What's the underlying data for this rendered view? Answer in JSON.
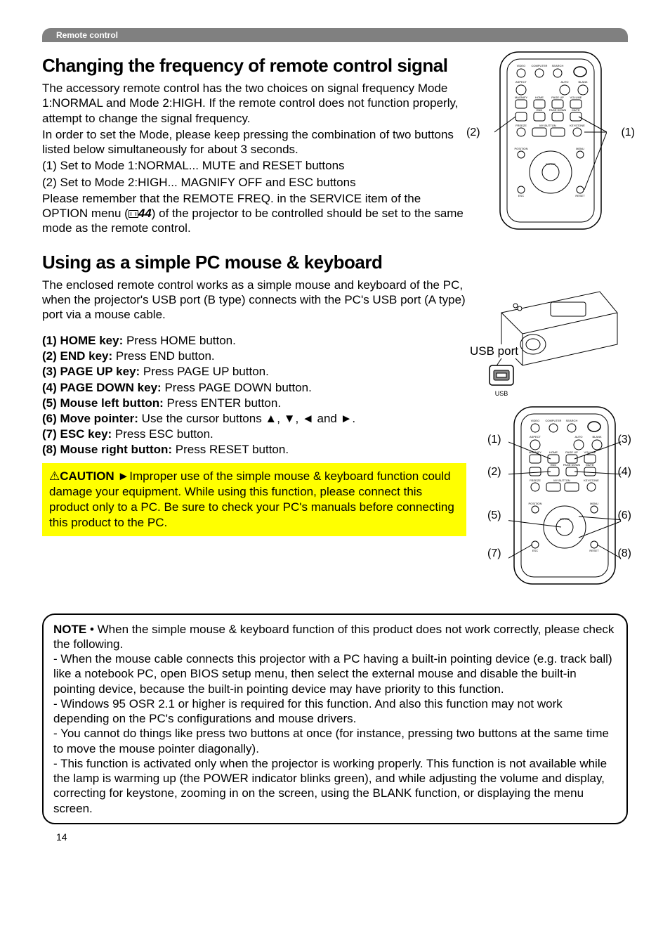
{
  "section_tag": "Remote control",
  "h1_freq": "Changing the frequency of remote control signal",
  "freq_para": [
    "The accessory remote control has the two choices on signal frequency Mode 1:NORMAL and Mode 2:HIGH. If the remote control does not function properly, attempt to change the signal frequency.",
    "In order to set the Mode, please keep pressing the combination of two buttons listed below simultaneously for about 3 seconds.",
    "(1) Set to Mode 1:NORMAL... MUTE and RESET buttons",
    "(2) Set to Mode 2:HIGH... MAGNIFY OFF and ESC buttons"
  ],
  "freq_para2_prefix": "Please remember that the REMOTE FREQ. in the SERVICE item of the OPTION menu (",
  "freq_ref": "44",
  "freq_para2_suffix": ") of the projector to be controlled should be set to the same mode as the remote control.",
  "h1_mouse": "Using as a simple PC mouse & keyboard",
  "mouse_intro": "The enclosed remote control works as a simple mouse and keyboard of the PC, when the projector's USB port (B type) connects with the PC's USB port (A type) port via a mouse cable.",
  "usb_port_label": "USB port",
  "usb_small": "USB",
  "keys": [
    {
      "b": "(1) HOME key:",
      "t": " Press HOME button."
    },
    {
      "b": "(2) END key:",
      "t": " Press END button."
    },
    {
      "b": "(3) PAGE UP key:",
      "t": " Press PAGE UP button."
    },
    {
      "b": "(4) PAGE DOWN key:",
      "t": " Press PAGE DOWN button."
    },
    {
      "b": "(5) Mouse left button:",
      "t": " Press ENTER button."
    },
    {
      "b": "(6) Move pointer:",
      "t": " Use the cursor buttons ▲, ▼, ◄ and ►."
    },
    {
      "b": "(7) ESC key:",
      "t": " Press ESC button."
    },
    {
      "b": "(8) Mouse right button:",
      "t": " Press RESET button."
    }
  ],
  "caution_label": "CAUTION",
  "caution_text": "  ►Improper use of the simple mouse & keyboard function could damage your equipment. While using this function, please connect this product only to a PC. Be sure to check your PC's manuals before connecting this product to the PC.",
  "note_label": "NOTE",
  "note_intro": "  • When the simple mouse & keyboard function of this product does not work correctly, please check the following.",
  "note_items": [
    "- When the mouse cable connects this projector with a PC having a built-in pointing device (e.g. track ball) like a notebook PC, open BIOS setup menu, then select the external mouse and disable the built-in pointing device, because the built-in pointing device may have priority to this function.",
    "- Windows 95 OSR 2.1 or higher is required for this function. And also this function may not work depending on the PC's configurations and mouse drivers.",
    "- You cannot do things like press two buttons at once (for instance, pressing two buttons at the same time to move the mouse pointer diagonally).",
    "- This function is activated only when the projector is working properly. This function is not available while the lamp is warming up (the POWER indicator blinks green), and while adjusting the volume and display, correcting for keystone, zooming in on the screen, using the BLANK function, or displaying the menu screen."
  ],
  "page_number": "14",
  "callouts_top": {
    "left": "(2)",
    "right": "(1)"
  },
  "callouts_bottom": {
    "l1": "(1)",
    "r1": "(3)",
    "l2": "(2)",
    "r2": "(4)",
    "l3": "(5)",
    "r3": "(6)",
    "l4": "(7)",
    "r4": "(8)"
  },
  "remote_labels": {
    "row0": [
      "VIDEO",
      "COMPUTER",
      "SEARCH",
      ""
    ],
    "row1": [
      "ASPECT",
      "",
      "AUTO",
      "BLANK"
    ],
    "row2l": [
      "MAGNIFY",
      "HOME",
      "PAGE UP",
      "VOLUME"
    ],
    "row2btn": [
      "ON",
      "",
      "",
      " "
    ],
    "row3btn": [
      "OFF",
      "END",
      "PAGE DOWN",
      "MUTE"
    ],
    "row4": [
      "FREEZE",
      "MY BUTTON",
      "KEYSTONE"
    ],
    "pos": "POSITION",
    "menu": "MENU",
    "enter": "ENTER",
    "esc": "ESC",
    "reset": "RESET"
  }
}
